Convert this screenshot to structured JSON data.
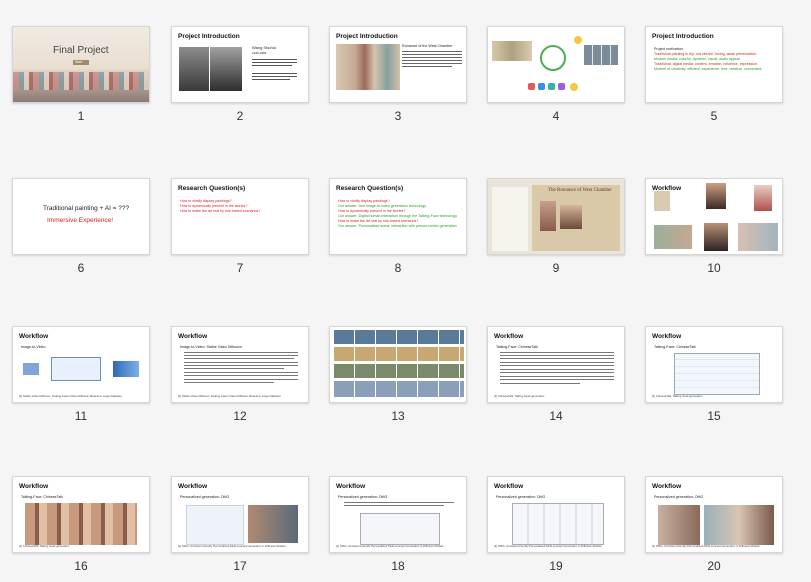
{
  "slides": [
    {
      "num": "1",
      "title": "Final Project",
      "button": "Start"
    },
    {
      "num": "2",
      "title": "Project Introduction",
      "name": "Wang Shuhui",
      "years": "1939-1983"
    },
    {
      "num": "3",
      "title": "Project Introduction",
      "subtitle": "Romance of the West Chamber"
    },
    {
      "num": "4"
    },
    {
      "num": "5",
      "title": "Project Introduction",
      "bullets": [
        "Project motivation:",
        "Traditional painting is dry: not vibrant, boring, weak presentation.",
        "Modern media: colorful, dynamic, visual, audio appeal.",
        "Traditional, digital media: content, emotion, influence, expression.",
        "Modern of creativity: efficient, experience, free, creative, convenient."
      ]
    },
    {
      "num": "6",
      "line1": "Traditional painting + AI = ???",
      "line2": "Immersive Experience!"
    },
    {
      "num": "7",
      "title": "Research Question(s)",
      "bullets": [
        "How to vividly display paintings?",
        "How to dynamically present in the stories?",
        "How to make the art real by role-based scenarios?"
      ]
    },
    {
      "num": "8",
      "title": "Research Question(s)",
      "bullets": [
        "How to vividly display paintings?",
        "Our answer: Use image-to-video generation technology",
        "How to dynamically present in the stories?",
        "Our answer: Digital human interaction through the Talking-Face technology",
        "How to make the art real by role-based scenarios?",
        "Our answer: Personalized scene interaction with person-centric generation"
      ]
    },
    {
      "num": "9",
      "heading": "The Romance of West Chamber"
    },
    {
      "num": "10",
      "title": "Workflow"
    },
    {
      "num": "11",
      "title": "Workflow",
      "bullet": "Image-to-Video",
      "foot": "[1] Stable Video Diffusion: Scaling Latent Video Diffusion Models to Large Datasets"
    },
    {
      "num": "12",
      "title": "Workflow",
      "bullet": "Image-to-Video: Stable Video Diffusion",
      "foot": "[1] Stable Video Diffusion: Scaling Latent Video Diffusion Models to Large Datasets"
    },
    {
      "num": "13"
    },
    {
      "num": "14",
      "title": "Workflow",
      "bullet": "Talking-Face: ChineseTalk",
      "foot": "[1] ChineseTalk: Talking head generation"
    },
    {
      "num": "15",
      "title": "Workflow",
      "bullet": "Talking-Face: ChineseTalk",
      "foot": "[1] ChineseTalk: Talking head generation"
    },
    {
      "num": "16",
      "title": "Workflow",
      "bullet": "Talking-Face: ChineseTalk",
      "foot": "[1] ChineseTalk: Talking head generation"
    },
    {
      "num": "17",
      "title": "Workflow",
      "bullet": "Personalized generation: OMG",
      "foot": "[1] OMG: Occlusion-friendly Personalized Multi-concept Generation in Diffusion Models"
    },
    {
      "num": "18",
      "title": "Workflow",
      "bullet": "Personalized generation: OMG",
      "foot": "[1] OMG: Occlusion-friendly Personalized Multi-concept Generation in Diffusion Models"
    },
    {
      "num": "19",
      "title": "Workflow",
      "bullet": "Personalized generation: OMG",
      "foot": "[1] OMG: Occlusion-friendly Personalized Multi-concept Generation in Diffusion Models"
    },
    {
      "num": "20",
      "title": "Workflow",
      "bullet": "Personalized generation: OMG",
      "foot": "[1] OMG: Occlusion-friendly Personalized Multi-concept Generation in Diffusion Models"
    }
  ],
  "colors": {
    "title": "#111111",
    "red": "#d41f1f",
    "green": "#2a9a2a",
    "selection": "#1a73e8"
  }
}
